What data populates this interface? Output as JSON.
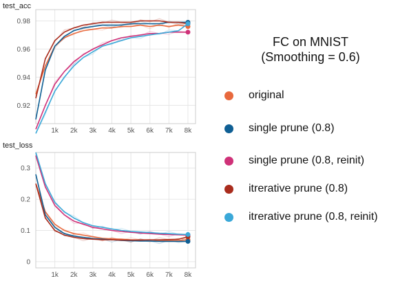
{
  "chart_data": [
    {
      "type": "line",
      "title": "test_acc",
      "xlabel": "",
      "ylabel": "",
      "xlim": [
        0,
        8400
      ],
      "ylim": [
        0.907,
        0.988
      ],
      "xticks": [
        1000,
        2000,
        3000,
        4000,
        5000,
        6000,
        7000,
        8000
      ],
      "xtick_labels": [
        "1k",
        "2k",
        "3k",
        "4k",
        "5k",
        "6k",
        "7k",
        "8k"
      ],
      "yticks": [
        0.92,
        0.94,
        0.96,
        0.98
      ],
      "ytick_labels": [
        "0.92",
        "0.94",
        "0.96",
        "0.98"
      ],
      "grid": true,
      "x": [
        0,
        500,
        1000,
        1500,
        2000,
        2500,
        3000,
        3500,
        4000,
        4500,
        5000,
        5500,
        6000,
        6500,
        7000,
        7500,
        8000
      ],
      "series": [
        {
          "name": "original",
          "color": "#e8693d",
          "values": [
            0.928,
            0.948,
            0.962,
            0.968,
            0.971,
            0.973,
            0.974,
            0.975,
            0.975,
            0.976,
            0.976,
            0.977,
            0.976,
            0.977,
            0.976,
            0.977,
            0.976
          ]
        },
        {
          "name": "single prune (0.8)",
          "color": "#0f5f94",
          "values": [
            0.91,
            0.945,
            0.962,
            0.969,
            0.973,
            0.975,
            0.976,
            0.977,
            0.977,
            0.977,
            0.978,
            0.978,
            0.978,
            0.978,
            0.979,
            0.979,
            0.979
          ]
        },
        {
          "name": "single prune (0.8, reinit)",
          "color": "#cf3178",
          "values": [
            0.903,
            0.92,
            0.935,
            0.944,
            0.951,
            0.956,
            0.96,
            0.963,
            0.966,
            0.968,
            0.969,
            0.97,
            0.971,
            0.971,
            0.972,
            0.972,
            0.972
          ]
        },
        {
          "name": "itrerative prune (0.8)",
          "color": "#a92c1d",
          "values": [
            0.925,
            0.953,
            0.966,
            0.972,
            0.975,
            0.977,
            0.978,
            0.979,
            0.979,
            0.979,
            0.979,
            0.98,
            0.98,
            0.98,
            0.979,
            0.979,
            0.978
          ]
        },
        {
          "name": "itrerative prune (0.8, reinit)",
          "color": "#3aa8d8",
          "values": [
            0.9,
            0.915,
            0.93,
            0.94,
            0.948,
            0.954,
            0.958,
            0.962,
            0.964,
            0.966,
            0.968,
            0.969,
            0.97,
            0.971,
            0.972,
            0.973,
            0.978
          ]
        }
      ]
    },
    {
      "type": "line",
      "title": "test_loss",
      "xlabel": "",
      "ylabel": "",
      "xlim": [
        0,
        8400
      ],
      "ylim": [
        -0.02,
        0.35
      ],
      "xticks": [
        1000,
        2000,
        3000,
        4000,
        5000,
        6000,
        7000,
        8000
      ],
      "xtick_labels": [
        "1k",
        "2k",
        "3k",
        "4k",
        "5k",
        "6k",
        "7k",
        "8k"
      ],
      "yticks": [
        0,
        0.1,
        0.2,
        0.3
      ],
      "ytick_labels": [
        "0",
        "0.1",
        "0.2",
        "0.3"
      ],
      "grid": true,
      "x": [
        0,
        500,
        1000,
        1500,
        2000,
        2500,
        3000,
        3500,
        4000,
        4500,
        5000,
        5500,
        6000,
        6500,
        7000,
        7500,
        8000
      ],
      "series": [
        {
          "name": "original",
          "color": "#e8693d",
          "values": [
            0.25,
            0.16,
            0.12,
            0.1,
            0.09,
            0.085,
            0.08,
            0.075,
            0.073,
            0.072,
            0.07,
            0.07,
            0.07,
            0.068,
            0.068,
            0.068,
            0.07
          ]
        },
        {
          "name": "single prune (0.8)",
          "color": "#0f5f94",
          "values": [
            0.28,
            0.15,
            0.11,
            0.09,
            0.082,
            0.078,
            0.074,
            0.072,
            0.07,
            0.068,
            0.067,
            0.066,
            0.066,
            0.065,
            0.065,
            0.065,
            0.065
          ]
        },
        {
          "name": "single prune (0.8, reinit)",
          "color": "#cf3178",
          "values": [
            0.34,
            0.24,
            0.18,
            0.15,
            0.13,
            0.12,
            0.11,
            0.105,
            0.1,
            0.097,
            0.094,
            0.092,
            0.09,
            0.088,
            0.087,
            0.086,
            0.085
          ]
        },
        {
          "name": "itrerative prune (0.8)",
          "color": "#a92c1d",
          "values": [
            0.25,
            0.14,
            0.1,
            0.085,
            0.078,
            0.074,
            0.072,
            0.07,
            0.07,
            0.069,
            0.069,
            0.069,
            0.07,
            0.07,
            0.071,
            0.072,
            0.08
          ]
        },
        {
          "name": "itrerative prune (0.8, reinit)",
          "color": "#3aa8d8",
          "values": [
            0.35,
            0.25,
            0.19,
            0.16,
            0.14,
            0.125,
            0.115,
            0.11,
            0.105,
            0.1,
            0.097,
            0.095,
            0.093,
            0.091,
            0.09,
            0.088,
            0.087
          ]
        }
      ]
    }
  ],
  "legend": {
    "title_line1": "FC on MNIST",
    "title_line2": "(Smoothing = 0.6)",
    "items": [
      {
        "label": "original",
        "color": "#e8693d"
      },
      {
        "label": "single prune (0.8)",
        "color": "#0f5f94"
      },
      {
        "label": "single prune (0.8, reinit)",
        "color": "#cf3178"
      },
      {
        "label": "itrerative prune (0.8)",
        "color": "#a92c1d"
      },
      {
        "label": "itrerative prune (0.8, reinit)",
        "color": "#3aa8d8"
      }
    ]
  }
}
